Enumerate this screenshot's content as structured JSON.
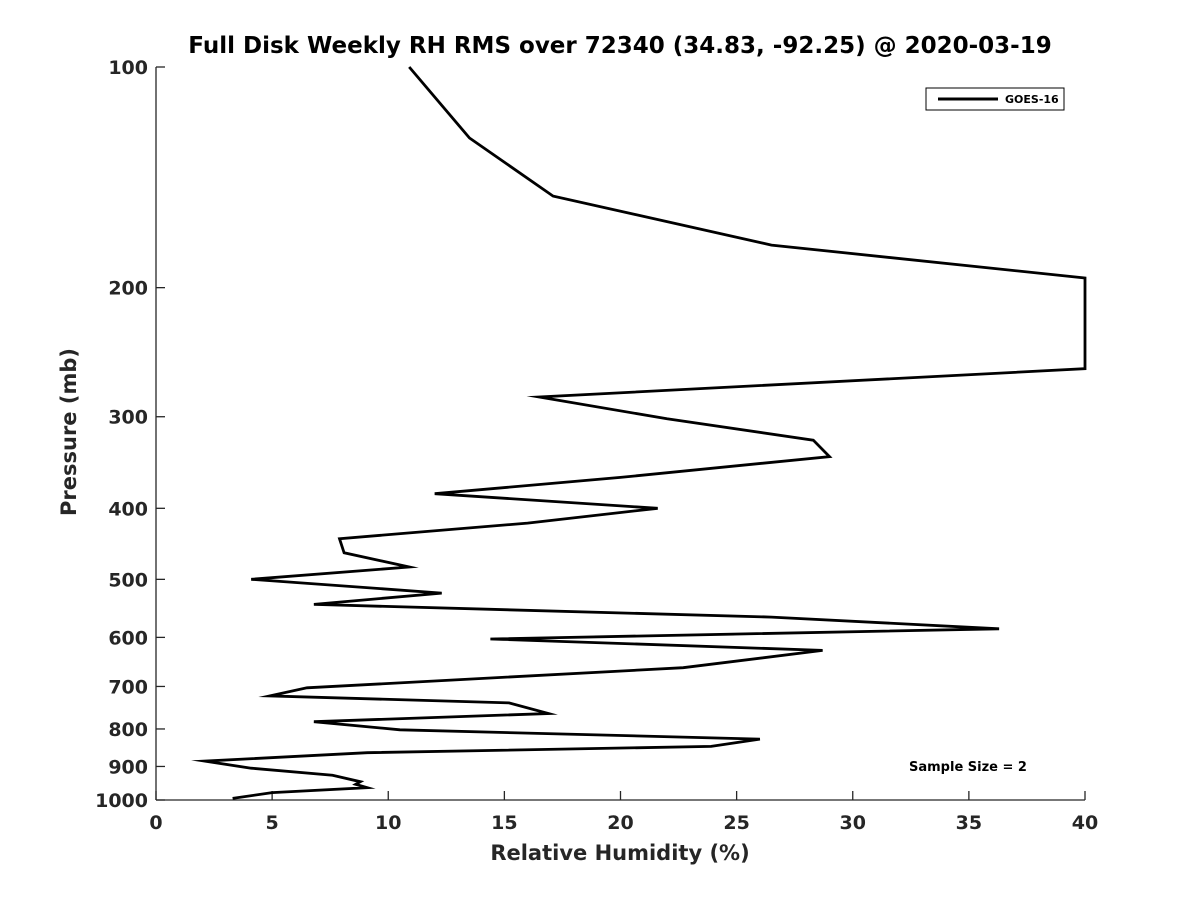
{
  "chart_data": {
    "type": "line",
    "title": "Full Disk Weekly RH RMS over 72340 (34.83, -92.25) @ 2020-03-19",
    "xlabel": "Relative Humidity (%)",
    "ylabel": "Pressure (mb)",
    "xlim": [
      0,
      40
    ],
    "ylim": [
      1000,
      100
    ],
    "yscale": "log",
    "y_reversed": true,
    "xticks": [
      "0",
      "5",
      "10",
      "15",
      "20",
      "25",
      "30",
      "35",
      "40"
    ],
    "yticks": [
      "100",
      "200",
      "300",
      "400",
      "500",
      "600",
      "700",
      "800",
      "900",
      "1000"
    ],
    "grid": false,
    "legend": {
      "position": "top-right",
      "entries": [
        "GOES-16"
      ]
    },
    "annotation": "Sample Size = 2",
    "line_color": "#000000",
    "series": [
      {
        "name": "GOES-16",
        "points": [
          [
            10.9,
            100
          ],
          [
            13.5,
            125
          ],
          [
            17.1,
            150
          ],
          [
            26.5,
            175
          ],
          [
            40,
            194
          ],
          [
            40,
            258
          ],
          [
            16.5,
            282
          ],
          [
            22,
            302
          ],
          [
            28.3,
            323
          ],
          [
            29,
            340
          ],
          [
            20,
            363
          ],
          [
            12,
            382
          ],
          [
            21.6,
            400
          ],
          [
            16,
            419
          ],
          [
            7.9,
            440
          ],
          [
            8.1,
            460
          ],
          [
            10.9,
            481
          ],
          [
            4.1,
            500
          ],
          [
            12.3,
            522
          ],
          [
            6.8,
            541
          ],
          [
            26.5,
            563
          ],
          [
            36.3,
            584
          ],
          [
            14.4,
            603
          ],
          [
            28.7,
            625
          ],
          [
            22.7,
            660
          ],
          [
            6.5,
            703
          ],
          [
            4.9,
            721
          ],
          [
            15.2,
            737
          ],
          [
            16.9,
            762
          ],
          [
            6.8,
            782
          ],
          [
            10.5,
            802
          ],
          [
            26,
            826
          ],
          [
            23.9,
            845
          ],
          [
            9.1,
            862
          ],
          [
            2.1,
            885
          ],
          [
            4.1,
            905
          ],
          [
            7.6,
            925
          ],
          [
            8.8,
            944
          ],
          [
            8.6,
            952
          ],
          [
            9.1,
            962
          ],
          [
            5,
            977
          ],
          [
            3.3,
            995
          ]
        ]
      }
    ]
  }
}
